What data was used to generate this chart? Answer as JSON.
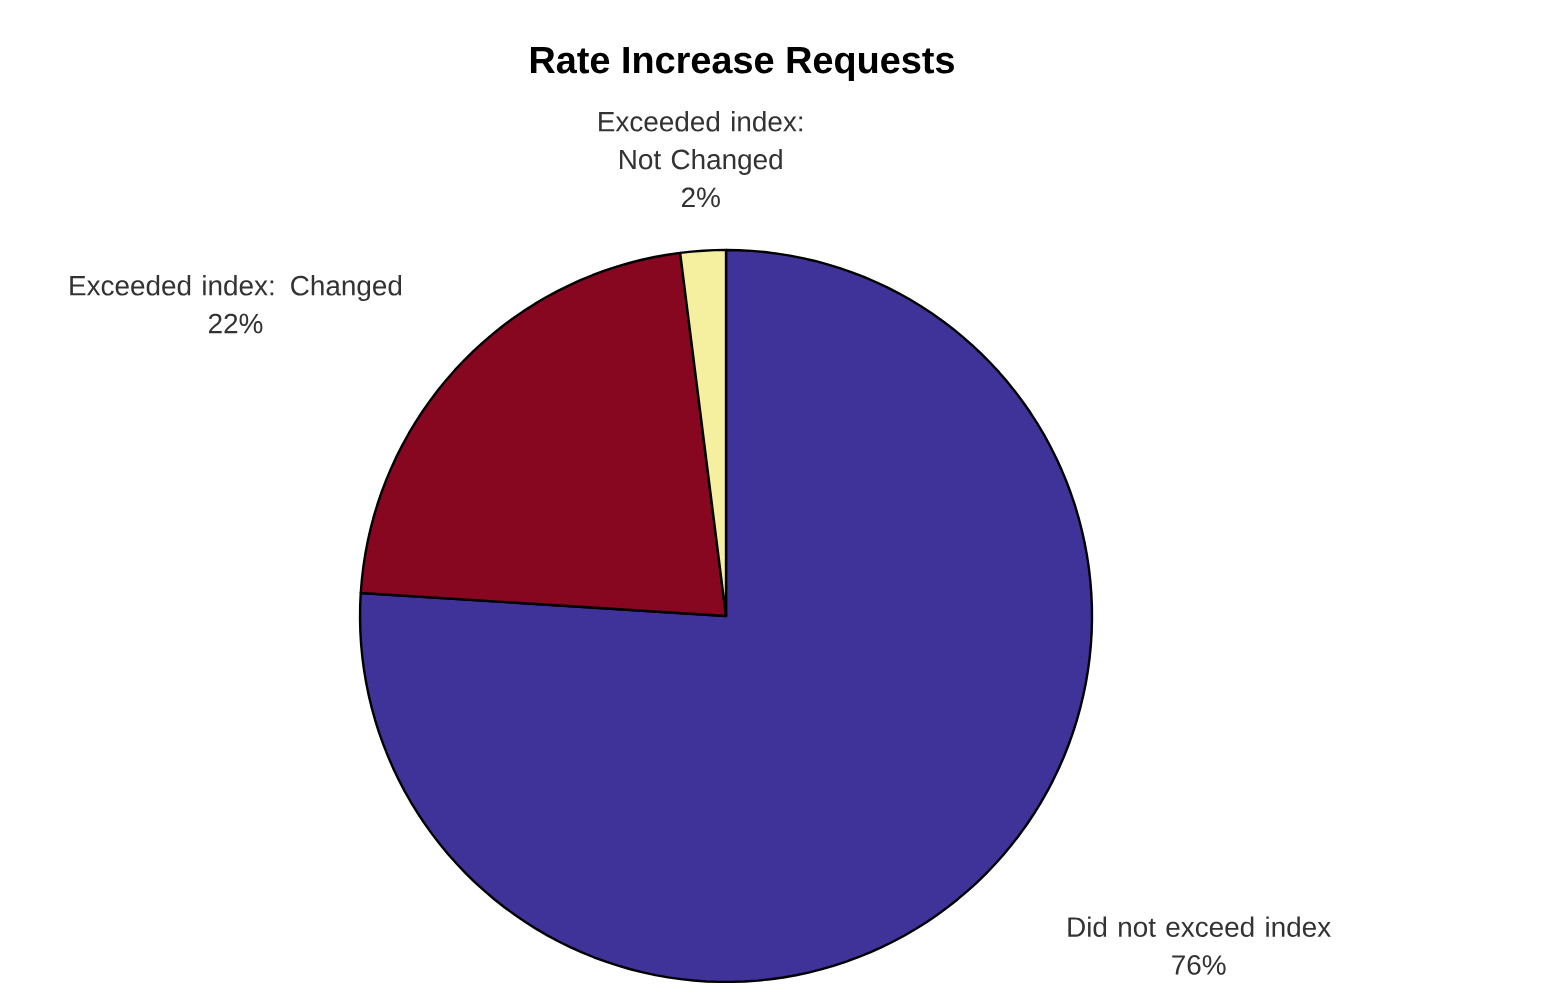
{
  "chart_data": {
    "type": "pie",
    "title": "Rate Increase Requests",
    "categories": [
      "Did not exceed index",
      "Exceeded index: Changed",
      "Exceeded index:  Not Changed"
    ],
    "values": [
      76,
      22,
      2
    ],
    "value_labels": [
      "76%",
      "22%",
      "2%"
    ],
    "colors": [
      "#3f3399",
      "#86071f",
      "#f5f0a0"
    ]
  }
}
